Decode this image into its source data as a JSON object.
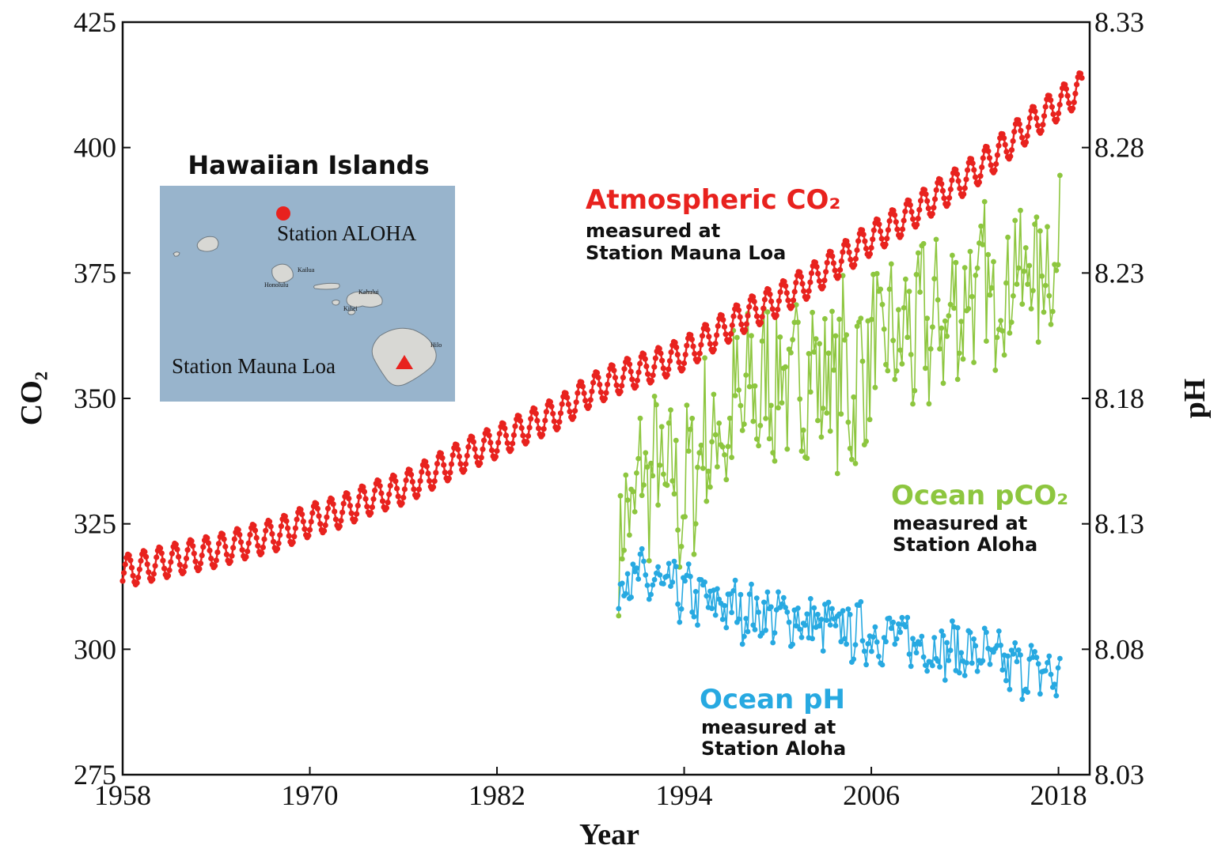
{
  "chart_data": {
    "type": "line",
    "title": "",
    "xlabel": "Year",
    "ylabel_left": "CO₂",
    "ylabel_right": "pH",
    "x_range": [
      1958,
      2020
    ],
    "y_left_range": [
      275,
      425
    ],
    "y_right_range": [
      8.03,
      8.33
    ],
    "x_ticks": [
      "1958",
      "1970",
      "1982",
      "1994",
      "2006",
      "2018"
    ],
    "y_left_ticks": [
      "275",
      "300",
      "325",
      "350",
      "375",
      "400",
      "425"
    ],
    "y_right_ticks": [
      "8.03",
      "8.08",
      "8.13",
      "8.18",
      "8.23",
      "8.28",
      "8.33"
    ],
    "grid": false,
    "series": [
      {
        "name": "Atmospheric CO₂",
        "subtitle": [
          "measured at",
          "Station Mauna Loa"
        ],
        "axis": "left",
        "color": "#e8221e",
        "x": [
          1958,
          1960,
          1962,
          1964,
          1966,
          1968,
          1970,
          1972,
          1974,
          1976,
          1978,
          1980,
          1982,
          1984,
          1986,
          1988,
          1990,
          1992,
          1994,
          1996,
          1998,
          2000,
          2002,
          2004,
          2006,
          2008,
          2010,
          2012,
          2014,
          2016,
          2018,
          2019.5
        ],
        "y": [
          315.5,
          316.9,
          318.4,
          319.6,
          321.4,
          323.0,
          325.7,
          327.5,
          330.2,
          332.1,
          335.4,
          338.8,
          341.4,
          344.4,
          347.2,
          351.6,
          354.4,
          356.5,
          358.9,
          362.8,
          366.7,
          369.6,
          373.3,
          377.5,
          381.9,
          385.6,
          389.9,
          393.8,
          398.6,
          404.2,
          408.7,
          412.0
        ],
        "seasonal_amplitude": 3.2
      },
      {
        "name": "Ocean pCO₂",
        "subtitle": [
          "measured at",
          "Station Aloha"
        ],
        "axis": "left",
        "color": "#8dc63f",
        "x": [
          1989,
          1990,
          1991,
          1992,
          1993,
          1994,
          1995,
          1996,
          1997,
          1998,
          1999,
          2000,
          2001,
          2002,
          2003,
          2004,
          2005,
          2006,
          2007,
          2008,
          2009,
          2010,
          2011,
          2012,
          2013,
          2014,
          2015,
          2016,
          2017,
          2018
        ],
        "y": [
          328,
          322,
          332,
          336,
          333,
          330,
          340,
          342,
          345,
          350,
          352,
          355,
          352,
          356,
          354,
          355,
          352,
          360,
          361,
          362,
          363,
          365,
          366,
          370,
          372,
          370,
          376,
          375,
          376,
          378
        ],
        "spread": [
          14,
          12,
          14,
          14,
          14,
          14,
          16,
          14,
          16,
          16,
          16,
          14,
          14,
          14,
          14,
          16,
          16,
          14,
          14,
          14,
          16,
          14,
          14,
          14,
          14,
          14,
          14,
          14,
          14,
          14
        ]
      },
      {
        "name": "Ocean pH",
        "subtitle": [
          "measured at",
          "Station Aloha"
        ],
        "axis": "right",
        "color": "#27a9e1",
        "x": [
          1989,
          1990,
          1991,
          1992,
          1993,
          1994,
          1995,
          1996,
          1997,
          1998,
          1999,
          2000,
          2001,
          2002,
          2003,
          2004,
          2005,
          2006,
          2007,
          2008,
          2009,
          2010,
          2011,
          2012,
          2013,
          2014,
          2015,
          2016,
          2017,
          2018
        ],
        "y": [
          8.112,
          8.11,
          8.108,
          8.106,
          8.104,
          8.102,
          8.1,
          8.098,
          8.097,
          8.095,
          8.094,
          8.093,
          8.092,
          8.09,
          8.089,
          8.088,
          8.087,
          8.086,
          8.085,
          8.084,
          8.082,
          8.081,
          8.08,
          8.079,
          8.078,
          8.075,
          8.073,
          8.072,
          8.071,
          8.069
        ],
        "spread": [
          0.012,
          0.012,
          0.01,
          0.01,
          0.01,
          0.01,
          0.01,
          0.01,
          0.01,
          0.01,
          0.01,
          0.01,
          0.01,
          0.01,
          0.01,
          0.01,
          0.01,
          0.01,
          0.01,
          0.01,
          0.01,
          0.01,
          0.01,
          0.01,
          0.01,
          0.01,
          0.01,
          0.01,
          0.01,
          0.01
        ]
      }
    ],
    "inset": {
      "title": "Hawaiian Islands",
      "labels": {
        "aloha": "Station ALOHA",
        "mauna_loa": "Station Mauna Loa",
        "kailua": "Kailua",
        "honolulu": "Honolulu",
        "kahului": "Kahului",
        "kihei": "Kihei",
        "hilo": "Hilo"
      },
      "colors": {
        "water": "#98b4cc",
        "land": "#d8d8d4",
        "marker": "#e8221e"
      }
    }
  }
}
